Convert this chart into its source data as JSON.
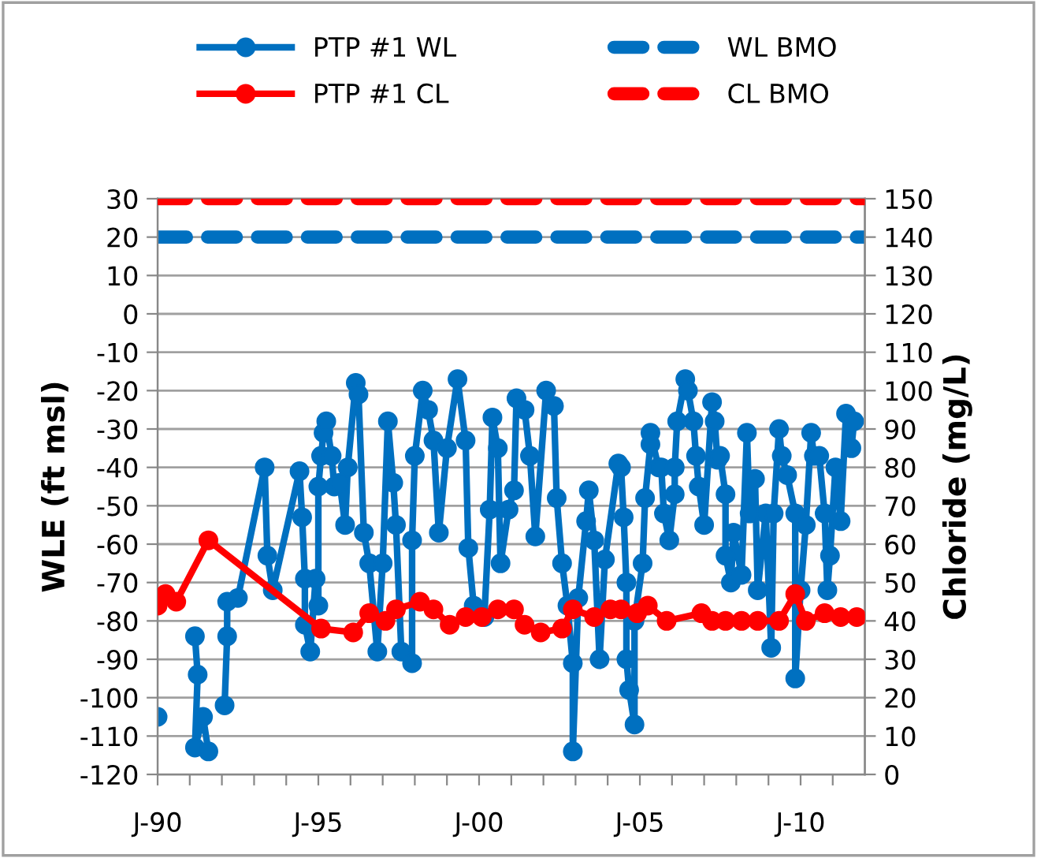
{
  "chart_data": {
    "type": "line",
    "ylabel": "WLE (ft msl)",
    "y2label": "Chloride (mg/L)",
    "xlim": [
      "1990-01",
      "2012-01"
    ],
    "ylim": [
      -120,
      30
    ],
    "y2lim": [
      0,
      150
    ],
    "xticks": [
      {
        "value": "1990-01",
        "label": "J-90"
      },
      {
        "value": "1991-01",
        "label": null
      },
      {
        "value": "1992-01",
        "label": null
      },
      {
        "value": "1993-01",
        "label": null
      },
      {
        "value": "1994-01",
        "label": null
      },
      {
        "value": "1995-01",
        "label": "J-95"
      },
      {
        "value": "1996-01",
        "label": null
      },
      {
        "value": "1997-01",
        "label": null
      },
      {
        "value": "1998-01",
        "label": null
      },
      {
        "value": "1999-01",
        "label": null
      },
      {
        "value": "2000-01",
        "label": "J-00"
      },
      {
        "value": "2001-01",
        "label": null
      },
      {
        "value": "2002-01",
        "label": null
      },
      {
        "value": "2003-01",
        "label": null
      },
      {
        "value": "2004-01",
        "label": null
      },
      {
        "value": "2005-01",
        "label": "J-05"
      },
      {
        "value": "2006-01",
        "label": null
      },
      {
        "value": "2007-01",
        "label": null
      },
      {
        "value": "2008-01",
        "label": null
      },
      {
        "value": "2009-01",
        "label": null
      },
      {
        "value": "2010-01",
        "label": "J-10"
      },
      {
        "value": "2011-01",
        "label": null
      }
    ],
    "yticks": [
      -120,
      -110,
      -100,
      -90,
      -80,
      -70,
      -60,
      -50,
      -40,
      -30,
      -20,
      -10,
      0,
      10,
      20,
      30
    ],
    "y2ticks": [
      0,
      10,
      20,
      30,
      40,
      50,
      60,
      70,
      80,
      90,
      100,
      110,
      120,
      130,
      140,
      150
    ],
    "grid": "y",
    "legend": "top",
    "series": [
      {
        "name": "PTP #1 WL",
        "color": "#0070c0",
        "marker": "circle",
        "line_style": "solid",
        "x": [
          "1990-01",
          "1990-04",
          "1991-03",
          "1991-04",
          "1991-03",
          "1991-06",
          "1991-08",
          "1991-10",
          "1992-02",
          "1992-03",
          "1992-03",
          "1992-07",
          "1993-05",
          "1993-06",
          "1993-08",
          "1994-06",
          "1994-07",
          "1994-08",
          "1994-08",
          "1994-10",
          "1994-12",
          "1995-01",
          "1995-01",
          "1995-02",
          "1995-03",
          "1995-04",
          "1995-06",
          "1995-07",
          "1995-09",
          "1995-11",
          "1995-12",
          "1996-03",
          "1996-04",
          "1996-06",
          "1996-08",
          "1996-11",
          "1997-01",
          "1997-03",
          "1997-05",
          "1997-06",
          "1997-08",
          "1997-12",
          "1997-12",
          "1998-01",
          "1998-04",
          "1998-06",
          "1998-08",
          "1998-10",
          "1999-01",
          "1999-05",
          "1999-08",
          "1999-09",
          "1999-11",
          "2000-03",
          "2000-05",
          "2000-06",
          "2000-08",
          "2000-09",
          "2000-12",
          "2001-02",
          "2001-03",
          "2001-06",
          "2001-08",
          "2001-10",
          "2002-02",
          "2002-05",
          "2002-06",
          "2002-08",
          "2002-10",
          "2002-12",
          "2002-12",
          "2003-02",
          "2003-05",
          "2003-06",
          "2003-08",
          "2003-10",
          "2003-12",
          "2004-05",
          "2004-06",
          "2004-07",
          "2004-08",
          "2004-08",
          "2004-09",
          "2004-11",
          "2004-11",
          "2005-02",
          "2005-03",
          "2005-05",
          "2005-05",
          "2005-08",
          "2005-09",
          "2005-10",
          "2005-12",
          "2006-02",
          "2006-02",
          "2006-03",
          "2006-06",
          "2006-07",
          "2006-09",
          "2006-10",
          "2006-11",
          "2007-01",
          "2007-04",
          "2007-05",
          "2007-06",
          "2007-07",
          "2007-09",
          "2007-09",
          "2007-11",
          "2007-12",
          "2008-03",
          "2008-05",
          "2008-06",
          "2008-08",
          "2008-09",
          "2008-12",
          "2009-02",
          "2009-03",
          "2009-05",
          "2009-06",
          "2009-08",
          "2009-11",
          "2009-11",
          "2010-01",
          "2010-03",
          "2010-05",
          "2010-06",
          "2010-08",
          "2010-10",
          "2010-11",
          "2010-12",
          "2011-02",
          "2011-04",
          "2011-06",
          "2011-08",
          "2011-09"
        ],
        "values": [
          -105,
          null,
          -84,
          -94,
          -113,
          -105,
          -114,
          null,
          -102,
          -84,
          -75,
          -74,
          -40,
          -63,
          -72,
          -41,
          -53,
          -69,
          -81,
          -88,
          -69,
          -76,
          -45,
          -37,
          -31,
          -28,
          -37,
          -45,
          -44,
          -55,
          -40,
          -18,
          -21,
          -57,
          -65,
          -88,
          -65,
          -28,
          -44,
          -55,
          -88,
          -91,
          -59,
          -37,
          -20,
          -25,
          -33,
          -57,
          -35,
          -17,
          -33,
          -61,
          -76,
          -79,
          -51,
          -27,
          -35,
          -65,
          -51,
          -46,
          -22,
          -25,
          -37,
          -58,
          -20,
          -24,
          -48,
          -65,
          -76,
          -91,
          -114,
          -74,
          -54,
          -46,
          -59,
          -90,
          -64,
          -39,
          -40,
          -53,
          -70,
          -90,
          -98,
          -107,
          -80,
          -65,
          -48,
          -34,
          -31,
          -40,
          -40,
          -52,
          -59,
          -47,
          -40,
          -28,
          -17,
          -20,
          -28,
          -37,
          -45,
          -55,
          -23,
          -28,
          -38,
          -37,
          -47,
          -63,
          -70,
          -57,
          -68,
          -31,
          -52,
          -43,
          -72,
          -52,
          -87,
          -52,
          -30,
          -37,
          -42,
          -52,
          -95,
          -72,
          -55,
          -31,
          -37,
          -37,
          -52,
          -72,
          -63,
          -40,
          -54,
          -26,
          -35,
          -28
        ]
      },
      {
        "name": "PTP #1 CL",
        "color": "#ff0000",
        "marker": "circle",
        "line_style": "solid",
        "axis": "y2",
        "x": [
          "1990-01",
          "1990-04",
          "1990-08",
          "1991-08",
          "1995-02",
          "1996-02",
          "1996-08",
          "1997-02",
          "1997-06",
          "1998-03",
          "1998-08",
          "1999-02",
          "1999-08",
          "2000-02",
          "2000-08",
          "2001-02",
          "2001-06",
          "2001-12",
          "2002-08",
          "2002-12",
          "2003-08",
          "2004-02",
          "2004-06",
          "2004-12",
          "2005-04",
          "2005-11",
          "2006-12",
          "2007-04",
          "2007-09",
          "2008-03",
          "2008-09",
          "2009-05",
          "2009-11",
          "2010-03",
          "2010-10",
          "2011-04",
          "2011-10"
        ],
        "values": [
          44,
          47,
          45,
          61,
          38,
          37,
          42,
          40,
          43,
          45,
          43,
          39,
          41,
          41,
          43,
          43,
          39,
          37,
          38,
          43,
          41,
          43,
          43,
          42,
          44,
          40,
          42,
          40,
          40,
          40,
          40,
          40,
          47,
          40,
          42,
          41,
          41
        ]
      },
      {
        "name": "WL BMO",
        "color": "#0070c0",
        "marker": "none",
        "line_style": "dashed",
        "x": [
          "1990-01",
          "2012-01"
        ],
        "values": [
          20,
          20
        ]
      },
      {
        "name": "CL BMO",
        "color": "#ff0000",
        "marker": "none",
        "line_style": "dashed",
        "axis": "y2",
        "x": [
          "1990-01",
          "2012-01"
        ],
        "values": [
          150,
          150
        ]
      }
    ]
  }
}
